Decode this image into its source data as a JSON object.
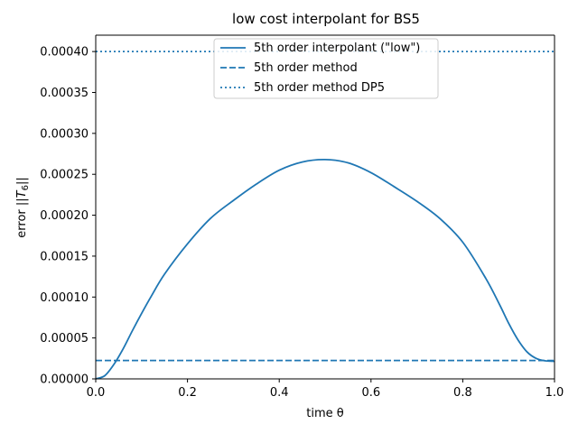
{
  "chart_data": {
    "type": "line",
    "title": "low cost interpolant for BS5",
    "xlabel": "time θ",
    "ylabel_prefix": "error ||",
    "ylabel_T": "T",
    "ylabel_sub": "6",
    "ylabel_suffix": "||",
    "xlim": [
      0.0,
      1.0
    ],
    "ylim": [
      0.0,
      0.00042
    ],
    "xticks": [
      0.0,
      0.2,
      0.4,
      0.6,
      0.8,
      1.0
    ],
    "xtick_labels": [
      "0.0",
      "0.2",
      "0.4",
      "0.6",
      "0.8",
      "1.0"
    ],
    "yticks": [
      0.0,
      5e-05,
      0.0001,
      0.00015,
      0.0002,
      0.00025,
      0.0003,
      0.00035,
      0.0004
    ],
    "ytick_labels": [
      "0.00000",
      "0.00005",
      "0.00010",
      "0.00015",
      "0.00020",
      "0.00025",
      "0.00030",
      "0.00035",
      "0.00040"
    ],
    "grid": false,
    "legend_position": "top-center",
    "color": "#1f77b4",
    "series": [
      {
        "name": "5th order interpolant (\"low\")",
        "style": "solid",
        "x": [
          0.0,
          0.02,
          0.04,
          0.06,
          0.08,
          0.1,
          0.12,
          0.15,
          0.2,
          0.25,
          0.3,
          0.35,
          0.4,
          0.45,
          0.5,
          0.55,
          0.6,
          0.65,
          0.7,
          0.75,
          0.8,
          0.85,
          0.88,
          0.9,
          0.92,
          0.94,
          0.96,
          0.98,
          1.0
        ],
        "y": [
          0.0,
          4e-06,
          1.8e-05,
          3.7e-05,
          5.9e-05,
          8e-05,
          0.0001,
          0.000128,
          0.000165,
          0.000196,
          0.000218,
          0.000238,
          0.000255,
          0.000265,
          0.000268,
          0.000264,
          0.000252,
          0.000235,
          0.000217,
          0.000196,
          0.000167,
          0.000123,
          9.1e-05,
          6.8e-05,
          4.8e-05,
          3.3e-05,
          2.5e-05,
          2.2e-05,
          2.15e-05
        ]
      },
      {
        "name": "5th order method",
        "style": "dashed",
        "x": [
          0.0,
          1.0
        ],
        "y": [
          2.25e-05,
          2.25e-05
        ]
      },
      {
        "name": "5th order method DP5",
        "style": "dotted",
        "x": [
          0.0,
          1.0
        ],
        "y": [
          0.0004,
          0.0004
        ]
      }
    ]
  }
}
